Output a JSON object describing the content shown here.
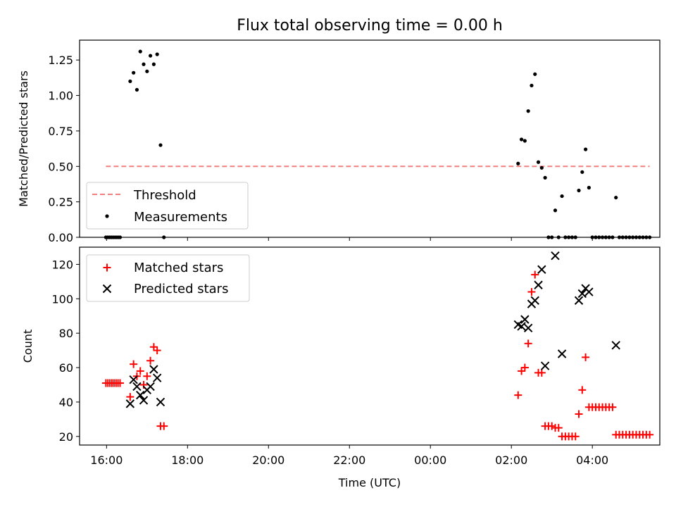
{
  "chart_data": [
    {
      "type": "scatter",
      "title": "Flux total observing time = 0.00 h",
      "ylabel": "Matched/Predicted stars",
      "xlabel": "",
      "xlim": [
        "15:20",
        "05:40"
      ],
      "ylim": [
        0,
        1.39
      ],
      "y_ticks": [
        "0.00",
        "0.25",
        "0.50",
        "0.75",
        "1.00",
        "1.25"
      ],
      "x_ticks": [
        "16:00",
        "18:00",
        "20:00",
        "22:00",
        "00:00",
        "02:00",
        "04:00"
      ],
      "legend": {
        "placement": "lower-left",
        "entries": [
          "Threshold",
          "Measurements"
        ]
      },
      "threshold": {
        "name": "Threshold",
        "value": 0.5,
        "x": [
          "15:59",
          "05:25"
        ],
        "color": "#f08080"
      },
      "series": [
        {
          "name": "Measurements",
          "color": "#000000",
          "points": [
            [
              "15:59",
              0
            ],
            [
              "16:02",
              0
            ],
            [
              "16:05",
              0
            ],
            [
              "16:08",
              0
            ],
            [
              "16:11",
              0
            ],
            [
              "16:14",
              0
            ],
            [
              "16:17",
              0
            ],
            [
              "16:20",
              0
            ],
            [
              "16:35",
              1.1
            ],
            [
              "16:40",
              1.16
            ],
            [
              "16:45",
              1.04
            ],
            [
              "16:50",
              1.31
            ],
            [
              "16:55",
              1.22
            ],
            [
              "17:00",
              1.17
            ],
            [
              "17:05",
              1.28
            ],
            [
              "17:10",
              1.22
            ],
            [
              "17:15",
              1.29
            ],
            [
              "17:20",
              0.65
            ],
            [
              "17:25",
              0
            ],
            [
              "02:10",
              0.52
            ],
            [
              "02:15",
              0.69
            ],
            [
              "02:20",
              0.68
            ],
            [
              "02:25",
              0.89
            ],
            [
              "02:30",
              1.07
            ],
            [
              "02:35",
              1.15
            ],
            [
              "02:40",
              0.53
            ],
            [
              "02:45",
              0.49
            ],
            [
              "02:50",
              0.42
            ],
            [
              "02:55",
              0
            ],
            [
              "03:00",
              0
            ],
            [
              "03:05",
              0.19
            ],
            [
              "03:10",
              0
            ],
            [
              "03:15",
              0.29
            ],
            [
              "03:20",
              0
            ],
            [
              "03:25",
              0
            ],
            [
              "03:30",
              0
            ],
            [
              "03:35",
              0
            ],
            [
              "03:40",
              0.33
            ],
            [
              "03:45",
              0.46
            ],
            [
              "03:50",
              0.62
            ],
            [
              "03:55",
              0.35
            ],
            [
              "04:00",
              0
            ],
            [
              "04:05",
              0
            ],
            [
              "04:10",
              0
            ],
            [
              "04:15",
              0
            ],
            [
              "04:20",
              0
            ],
            [
              "04:25",
              0
            ],
            [
              "04:30",
              0
            ],
            [
              "04:35",
              0.28
            ],
            [
              "04:40",
              0
            ],
            [
              "04:45",
              0
            ],
            [
              "04:50",
              0
            ],
            [
              "04:55",
              0
            ],
            [
              "05:00",
              0
            ],
            [
              "05:05",
              0
            ],
            [
              "05:10",
              0
            ],
            [
              "05:15",
              0
            ],
            [
              "05:20",
              0
            ],
            [
              "05:25",
              0
            ]
          ]
        }
      ]
    },
    {
      "type": "scatter",
      "title": "",
      "ylabel": "Count",
      "xlabel": "Time (UTC)",
      "xlim": [
        "15:20",
        "05:40"
      ],
      "ylim": [
        15,
        130
      ],
      "y_ticks": [
        "20",
        "40",
        "60",
        "80",
        "100",
        "120"
      ],
      "x_ticks": [
        "16:00",
        "18:00",
        "20:00",
        "22:00",
        "00:00",
        "02:00",
        "04:00"
      ],
      "legend": {
        "placement": "upper-left",
        "entries": [
          "Matched stars",
          "Predicted stars"
        ]
      },
      "series": [
        {
          "name": "Matched stars",
          "color": "#ff0000",
          "marker": "plus",
          "points": [
            [
              "15:59",
              51
            ],
            [
              "16:02",
              51
            ],
            [
              "16:05",
              51
            ],
            [
              "16:08",
              51
            ],
            [
              "16:11",
              51
            ],
            [
              "16:14",
              51
            ],
            [
              "16:17",
              51
            ],
            [
              "16:20",
              51
            ],
            [
              "16:35",
              43
            ],
            [
              "16:40",
              62
            ],
            [
              "16:45",
              55
            ],
            [
              "16:50",
              58
            ],
            [
              "16:55",
              50
            ],
            [
              "17:00",
              55
            ],
            [
              "17:05",
              64
            ],
            [
              "17:10",
              72
            ],
            [
              "17:15",
              70
            ],
            [
              "17:20",
              26
            ],
            [
              "17:25",
              26
            ],
            [
              "02:10",
              44
            ],
            [
              "02:15",
              58
            ],
            [
              "02:20",
              60
            ],
            [
              "02:25",
              74
            ],
            [
              "02:30",
              104
            ],
            [
              "02:35",
              114
            ],
            [
              "02:40",
              57
            ],
            [
              "02:45",
              57
            ],
            [
              "02:50",
              26
            ],
            [
              "02:55",
              26
            ],
            [
              "03:00",
              26
            ],
            [
              "03:05",
              25
            ],
            [
              "03:10",
              25
            ],
            [
              "03:15",
              20
            ],
            [
              "03:20",
              20
            ],
            [
              "03:25",
              20
            ],
            [
              "03:30",
              20
            ],
            [
              "03:35",
              20
            ],
            [
              "03:40",
              33
            ],
            [
              "03:45",
              47
            ],
            [
              "03:50",
              66
            ],
            [
              "03:55",
              37
            ],
            [
              "04:00",
              37
            ],
            [
              "04:05",
              37
            ],
            [
              "04:10",
              37
            ],
            [
              "04:15",
              37
            ],
            [
              "04:20",
              37
            ],
            [
              "04:25",
              37
            ],
            [
              "04:30",
              37
            ],
            [
              "04:35",
              21
            ],
            [
              "04:40",
              21
            ],
            [
              "04:45",
              21
            ],
            [
              "04:50",
              21
            ],
            [
              "04:55",
              21
            ],
            [
              "05:00",
              21
            ],
            [
              "05:05",
              21
            ],
            [
              "05:10",
              21
            ],
            [
              "05:15",
              21
            ],
            [
              "05:20",
              21
            ],
            [
              "05:25",
              21
            ]
          ]
        },
        {
          "name": "Predicted stars",
          "color": "#000000",
          "marker": "x",
          "points": [
            [
              "16:35",
              39
            ],
            [
              "16:40",
              53
            ],
            [
              "16:45",
              49
            ],
            [
              "16:50",
              44
            ],
            [
              "16:55",
              41
            ],
            [
              "17:00",
              47
            ],
            [
              "17:05",
              49
            ],
            [
              "17:10",
              59
            ],
            [
              "17:15",
              54
            ],
            [
              "17:20",
              40
            ],
            [
              "02:10",
              85
            ],
            [
              "02:15",
              84
            ],
            [
              "02:20",
              88
            ],
            [
              "02:25",
              83
            ],
            [
              "02:30",
              97
            ],
            [
              "02:35",
              99
            ],
            [
              "02:40",
              108
            ],
            [
              "02:45",
              117
            ],
            [
              "02:50",
              61
            ],
            [
              "03:05",
              125
            ],
            [
              "03:15",
              68
            ],
            [
              "03:40",
              99
            ],
            [
              "03:45",
              103
            ],
            [
              "03:50",
              106
            ],
            [
              "03:55",
              104
            ],
            [
              "04:35",
              73
            ]
          ]
        }
      ]
    }
  ]
}
